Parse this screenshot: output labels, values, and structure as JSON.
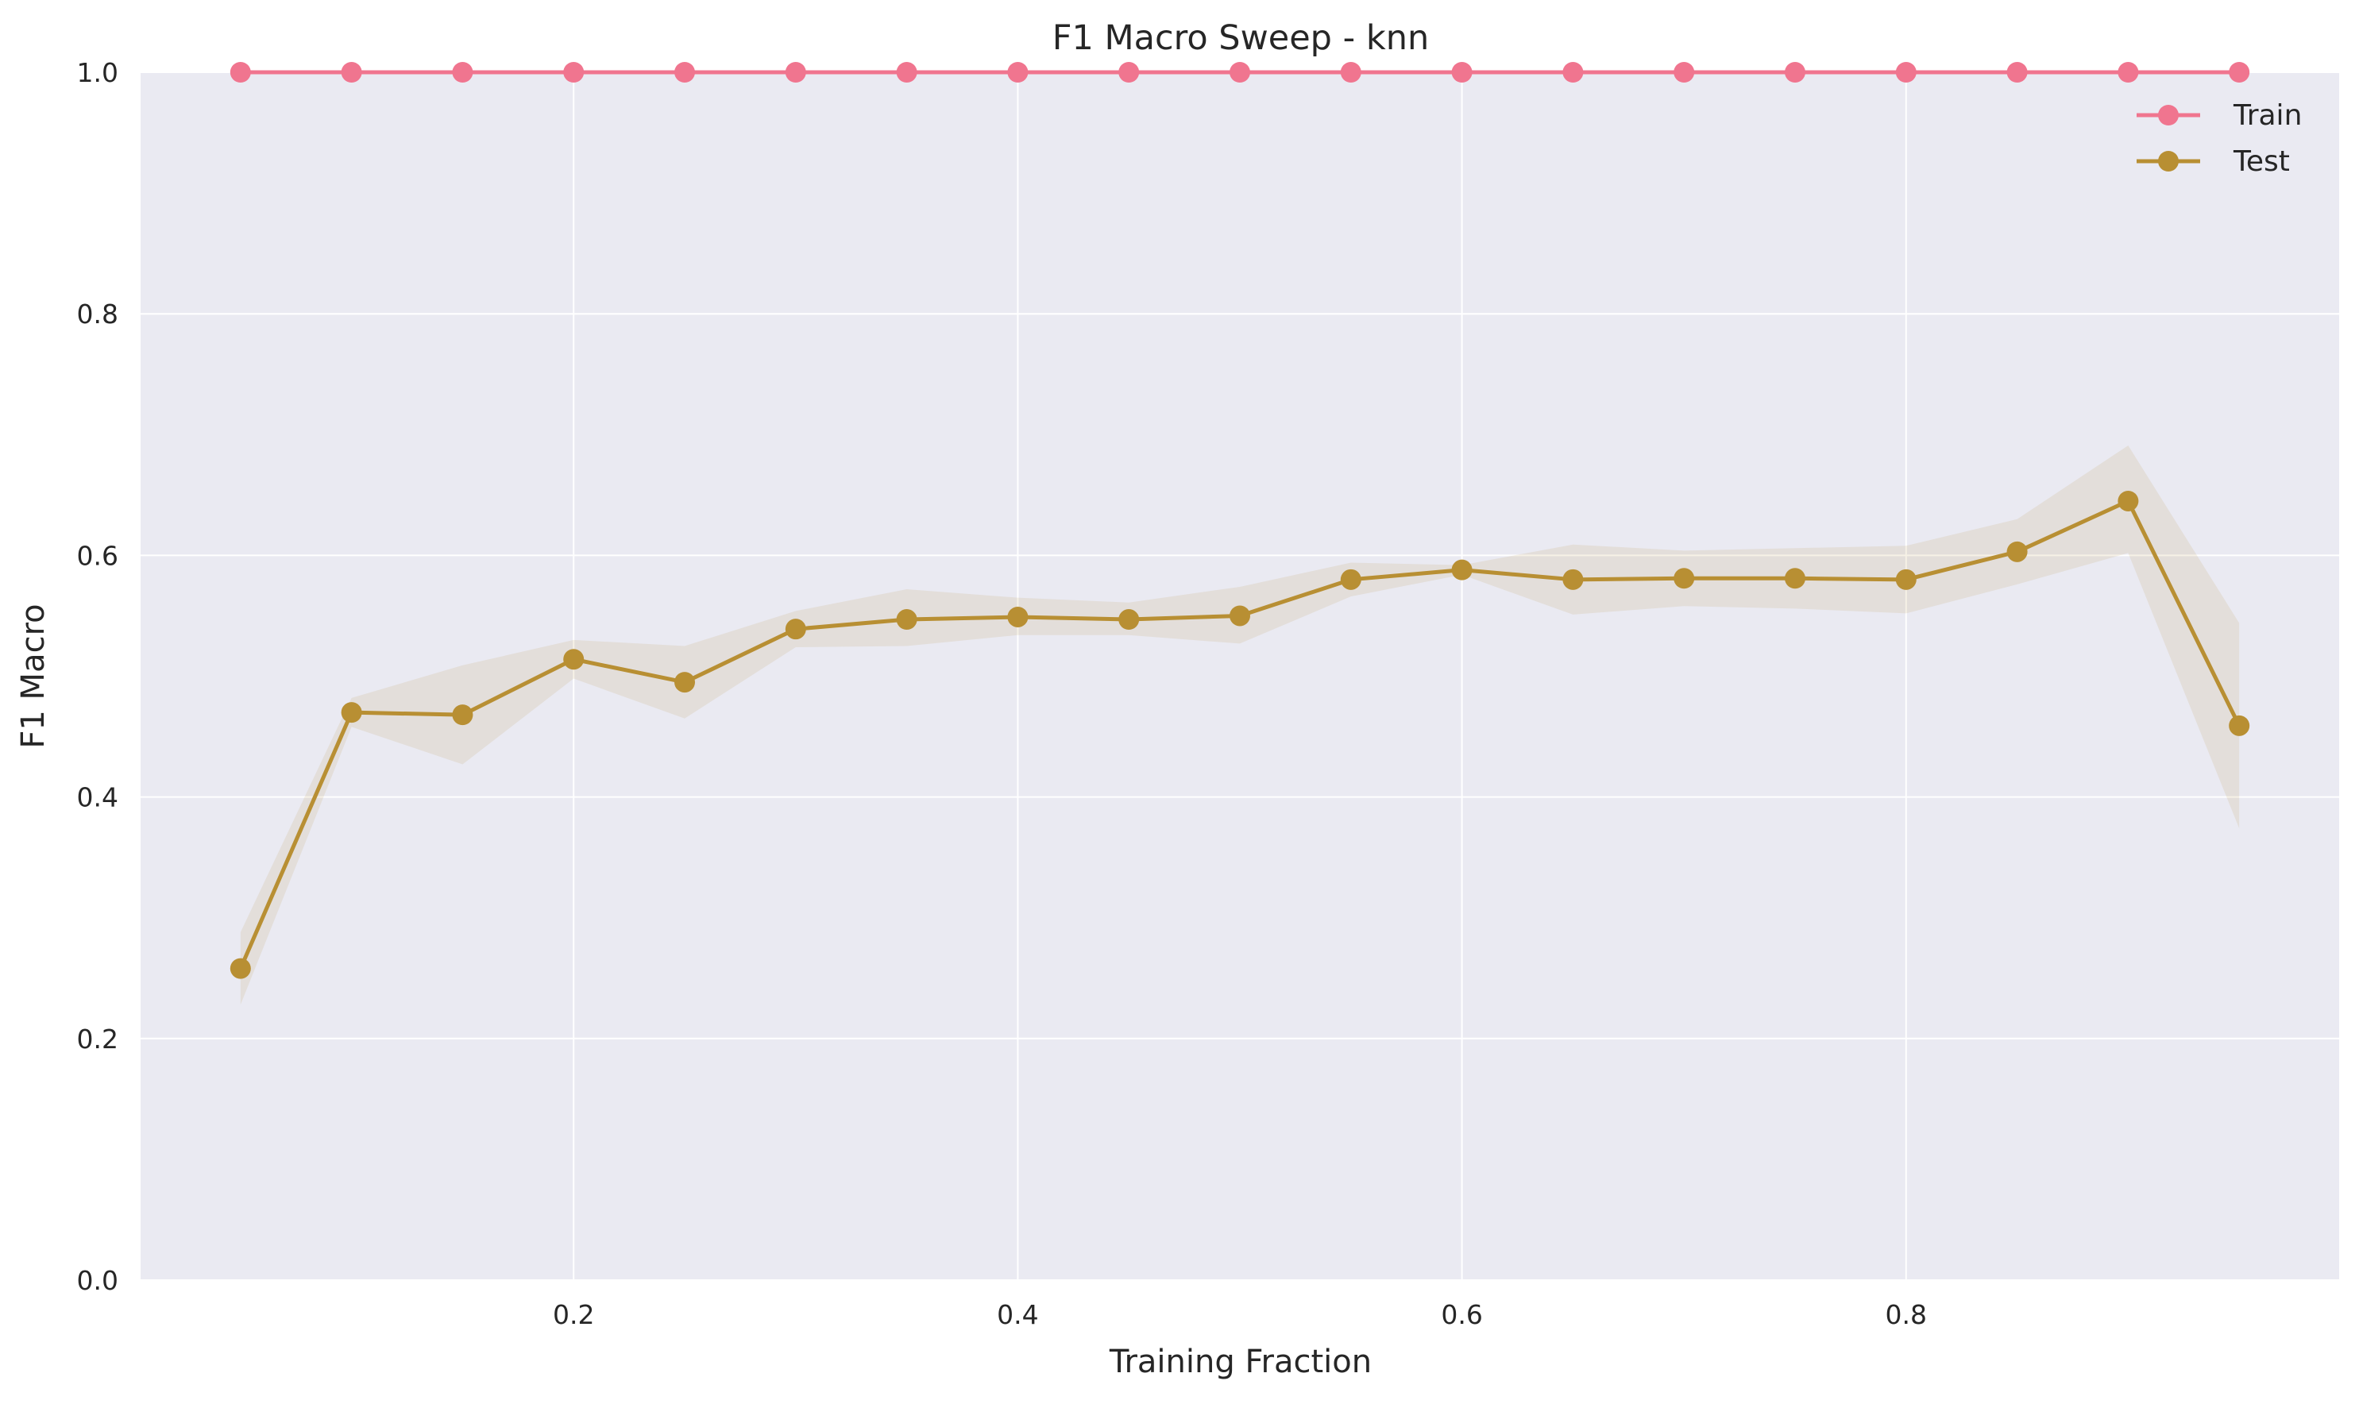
{
  "chart_data": {
    "type": "line",
    "title": "F1 Macro Sweep - knn",
    "xlabel": "Training Fraction",
    "ylabel": "F1 Macro",
    "xlim": [
      0.0,
      1.0
    ],
    "ylim": [
      0.0,
      1.0
    ],
    "xticks": [
      0.2,
      0.4,
      0.6,
      0.8
    ],
    "xtick_labels": [
      "0.2",
      "0.4",
      "0.6",
      "0.8"
    ],
    "yticks": [
      0.0,
      0.2,
      0.4,
      0.6,
      0.8,
      1.0
    ],
    "ytick_labels": [
      "0.0",
      "0.2",
      "0.4",
      "0.6",
      "0.8",
      "1.0"
    ],
    "grid": true,
    "legend_position": "top-right",
    "x": [
      0.05,
      0.1,
      0.15,
      0.2,
      0.25,
      0.3,
      0.35,
      0.4,
      0.45,
      0.5,
      0.55,
      0.6,
      0.65,
      0.7,
      0.75,
      0.8,
      0.85,
      0.9,
      0.95
    ],
    "series": [
      {
        "name": "Train",
        "color": "#f0758f",
        "values": [
          1.0,
          1.0,
          1.0,
          1.0,
          1.0,
          1.0,
          1.0,
          1.0,
          1.0,
          1.0,
          1.0,
          1.0,
          1.0,
          1.0,
          1.0,
          1.0,
          1.0,
          1.0,
          1.0
        ],
        "lower": [
          1.0,
          1.0,
          1.0,
          1.0,
          1.0,
          1.0,
          1.0,
          1.0,
          1.0,
          1.0,
          1.0,
          1.0,
          1.0,
          1.0,
          1.0,
          1.0,
          1.0,
          1.0,
          1.0
        ],
        "upper": [
          1.0,
          1.0,
          1.0,
          1.0,
          1.0,
          1.0,
          1.0,
          1.0,
          1.0,
          1.0,
          1.0,
          1.0,
          1.0,
          1.0,
          1.0,
          1.0,
          1.0,
          1.0,
          1.0
        ]
      },
      {
        "name": "Test",
        "color": "#b88f33",
        "values": [
          0.258,
          0.47,
          0.468,
          0.514,
          0.495,
          0.539,
          0.547,
          0.549,
          0.547,
          0.55,
          0.58,
          0.588,
          0.58,
          0.581,
          0.581,
          0.58,
          0.603,
          0.645,
          0.459
        ],
        "lower": [
          0.228,
          0.458,
          0.427,
          0.498,
          0.465,
          0.524,
          0.525,
          0.534,
          0.534,
          0.527,
          0.566,
          0.584,
          0.551,
          0.558,
          0.556,
          0.552,
          0.576,
          0.602,
          0.374
        ],
        "upper": [
          0.288,
          0.482,
          0.509,
          0.53,
          0.525,
          0.554,
          0.572,
          0.565,
          0.561,
          0.574,
          0.594,
          0.592,
          0.609,
          0.604,
          0.606,
          0.608,
          0.63,
          0.691,
          0.544
        ]
      }
    ]
  }
}
